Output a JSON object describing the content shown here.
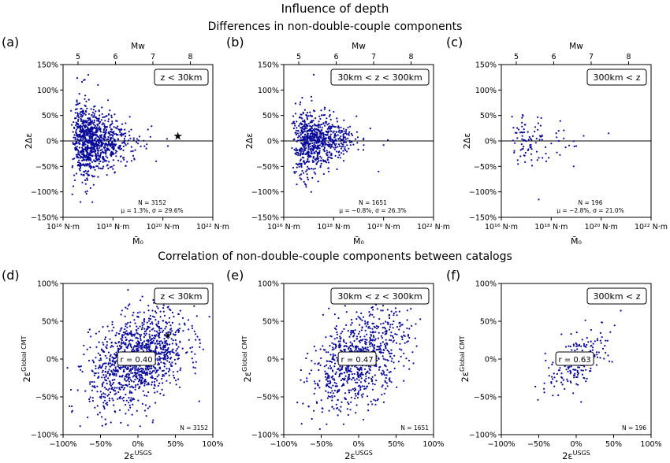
{
  "figure": {
    "title": "Influence of depth",
    "section1_title": "Differences in non-double-couple components",
    "section2_title": "Correlation of non-double-couple components between catalogs"
  },
  "colors": {
    "points": "#0a0a9a",
    "axis": "#000000"
  },
  "chart_data": [
    {
      "id": "a",
      "panel_label": "(a)",
      "type": "scatter",
      "depth_label": "z < 30km",
      "ylabel": "2Δε",
      "xlabel": "M̄₀",
      "top_xlabel": "Mw",
      "x_scale": "log",
      "xlim": [
        1e+16,
        1e+22
      ],
      "ylim": [
        -150,
        150
      ],
      "top_ticks": [
        "5",
        "6",
        "7",
        "8"
      ],
      "x_ticks": [
        "10¹⁶ N·m",
        "10¹⁸ N·m",
        "10²⁰ N·m",
        "10²² N·m"
      ],
      "y_ticks": [
        "150%",
        "100%",
        "50%",
        "0%",
        "−50%",
        "−100%",
        "−150%"
      ],
      "stats": {
        "N": "N = 3152",
        "mu_sigma": "μ = 1.3%,  σ = 29.6%"
      },
      "n": 3152,
      "sigma": 29.6,
      "star_marker": {
        "x_log10": 20.6,
        "y": 10
      },
      "points": [
        [
          17.0,
          12
        ],
        [
          17.3,
          -20
        ],
        [
          17.6,
          35
        ],
        [
          17.9,
          -8
        ],
        [
          18.2,
          4
        ],
        [
          16.8,
          60
        ],
        [
          17.2,
          -70
        ],
        [
          18.5,
          15
        ],
        [
          17.5,
          -40
        ],
        [
          19.0,
          -5
        ],
        [
          17.8,
          80
        ],
        [
          16.9,
          -100
        ],
        [
          17.4,
          110
        ],
        [
          19.5,
          8
        ],
        [
          20.2,
          -10
        ],
        [
          17.1,
          25
        ],
        [
          18.0,
          -55
        ],
        [
          16.7,
          -120
        ],
        [
          18.8,
          -20
        ],
        [
          17.6,
          5
        ]
      ]
    },
    {
      "id": "b",
      "panel_label": "(b)",
      "type": "scatter",
      "depth_label": "30km < z < 300km",
      "ylabel": "2Δε",
      "xlabel": "M̄₀",
      "top_xlabel": "Mw",
      "x_scale": "log",
      "xlim": [
        1e+16,
        1e+22
      ],
      "ylim": [
        -150,
        150
      ],
      "top_ticks": [
        "5",
        "6",
        "7",
        "8"
      ],
      "x_ticks": [
        "10¹⁶ N·m",
        "10¹⁸ N·m",
        "10²⁰ N·m",
        "10²² N·m"
      ],
      "y_ticks": [
        "150%",
        "100%",
        "50%",
        "0%",
        "−50%",
        "−100%",
        "−150%"
      ],
      "stats": {
        "N": "N = 1651",
        "mu_sigma": "μ = −0.8%,  σ = 26.3%"
      },
      "n": 1651,
      "sigma": 26.3,
      "points": [
        [
          17.0,
          -5
        ],
        [
          17.3,
          30
        ],
        [
          17.7,
          -25
        ],
        [
          18.1,
          10
        ],
        [
          17.2,
          130
        ],
        [
          16.9,
          -90
        ],
        [
          18.6,
          -15
        ],
        [
          19.2,
          5
        ],
        [
          17.5,
          60
        ],
        [
          17.8,
          -60
        ],
        [
          20.0,
          -8
        ],
        [
          19.8,
          -60
        ],
        [
          17.1,
          -100
        ],
        [
          18.3,
          20
        ],
        [
          17.4,
          0
        ]
      ]
    },
    {
      "id": "c",
      "panel_label": "(c)",
      "type": "scatter",
      "depth_label": "300km < z",
      "ylabel": "2Δε",
      "xlabel": "M̄₀",
      "top_xlabel": "Mw",
      "x_scale": "log",
      "xlim": [
        1e+16,
        1e+22
      ],
      "ylim": [
        -150,
        150
      ],
      "top_ticks": [
        "5",
        "6",
        "7",
        "8"
      ],
      "x_ticks": [
        "10¹⁶ N·m",
        "10¹⁸ N·m",
        "10²⁰ N·m",
        "10²² N·m"
      ],
      "y_ticks": [
        "150%",
        "100%",
        "50%",
        "0%",
        "−50%",
        "−100%",
        "−150%"
      ],
      "stats": {
        "N": "N = 196",
        "mu_sigma": "μ = −2.8%,  σ = 21.0%"
      },
      "n": 196,
      "sigma": 21.0,
      "points": [
        [
          17.5,
          -115
        ],
        [
          17.6,
          45
        ],
        [
          18.0,
          -5
        ],
        [
          18.3,
          20
        ],
        [
          18.9,
          -50
        ],
        [
          19.3,
          10
        ],
        [
          20.3,
          15
        ],
        [
          17.8,
          -40
        ],
        [
          18.5,
          5
        ],
        [
          19.0,
          -10
        ]
      ]
    },
    {
      "id": "d",
      "panel_label": "(d)",
      "type": "scatter",
      "depth_label": "z < 30km",
      "ylabel": "2ε Global CMT",
      "xlabel": "2ε USGS",
      "ylabel_main": "2ε",
      "ylabel_sup": "Global CMT",
      "xlabel_main": "2ε",
      "xlabel_sup": "USGS",
      "xlim": [
        -100,
        100
      ],
      "ylim": [
        -100,
        100
      ],
      "x_ticks": [
        "−100%",
        "−50%",
        "0%",
        "50%",
        "100%"
      ],
      "y_ticks": [
        "100%",
        "50%",
        "0%",
        "−50%",
        "−100%"
      ],
      "r_label": "r = 0.40",
      "r": 0.4,
      "n_label": "N = 3152",
      "n": 3152,
      "star_marker": {
        "x": 40,
        "y": 32
      }
    },
    {
      "id": "e",
      "panel_label": "(e)",
      "type": "scatter",
      "depth_label": "30km < z < 300km",
      "ylabel": "2ε Global CMT",
      "xlabel": "2ε USGS",
      "ylabel_main": "2ε",
      "ylabel_sup": "Global CMT",
      "xlabel_main": "2ε",
      "xlabel_sup": "USGS",
      "xlim": [
        -100,
        100
      ],
      "ylim": [
        -100,
        100
      ],
      "x_ticks": [
        "−100%",
        "−50%",
        "0%",
        "50%",
        "100%"
      ],
      "y_ticks": [
        "100%",
        "50%",
        "0%",
        "−50%",
        "−100%"
      ],
      "r_label": "r = 0.47",
      "r": 0.47,
      "n_label": "N = 1651",
      "n": 1651
    },
    {
      "id": "f",
      "panel_label": "(f)",
      "type": "scatter",
      "depth_label": "300km < z",
      "ylabel": "2ε Global CMT",
      "xlabel": "2ε USGS",
      "ylabel_main": "2ε",
      "ylabel_sup": "Global CMT",
      "xlabel_main": "2ε",
      "xlabel_sup": "USGS",
      "xlim": [
        -100,
        100
      ],
      "ylim": [
        -100,
        100
      ],
      "x_ticks": [
        "−100%",
        "−50%",
        "0%",
        "50%",
        "100%"
      ],
      "y_ticks": [
        "100%",
        "50%",
        "0%",
        "−50%",
        "−100%"
      ],
      "r_label": "r = 0.63",
      "r": 0.63,
      "n_label": "N = 196",
      "n": 196
    }
  ]
}
